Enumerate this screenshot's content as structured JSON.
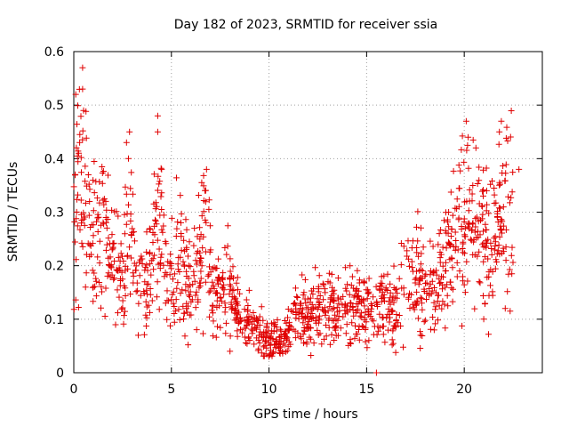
{
  "chart_data": {
    "type": "scatter",
    "title": "Day 182 of 2023, SRMTID for receiver ssia",
    "xlabel": "GPS time / hours",
    "ylabel": "SRMTID / TECUs",
    "xlim": [
      0,
      24
    ],
    "ylim": [
      0,
      0.6
    ],
    "xticks": [
      0,
      5,
      10,
      15,
      20
    ],
    "yticks": [
      0,
      0.1,
      0.2,
      0.3,
      0.4,
      0.5,
      0.6
    ],
    "x_tick_labels": [
      "0",
      "5",
      "10",
      "15",
      "20"
    ],
    "y_tick_labels": [
      "0",
      "0.1",
      "0.2",
      "0.3",
      "0.4",
      "0.5",
      "0.6"
    ],
    "grid": true,
    "marker": "+",
    "color": "#e00000",
    "series": [
      {
        "name": "SRMTID",
        "trend": [
          {
            "x": 0.0,
            "y": 0.3
          },
          {
            "x": 0.2,
            "y": 0.38
          },
          {
            "x": 0.5,
            "y": 0.3
          },
          {
            "x": 1.0,
            "y": 0.25
          },
          {
            "x": 1.5,
            "y": 0.27
          },
          {
            "x": 2.0,
            "y": 0.2
          },
          {
            "x": 2.5,
            "y": 0.17
          },
          {
            "x": 2.8,
            "y": 0.32
          },
          {
            "x": 3.2,
            "y": 0.18
          },
          {
            "x": 3.8,
            "y": 0.15
          },
          {
            "x": 4.3,
            "y": 0.28
          },
          {
            "x": 4.8,
            "y": 0.16
          },
          {
            "x": 5.3,
            "y": 0.22
          },
          {
            "x": 6.0,
            "y": 0.15
          },
          {
            "x": 6.7,
            "y": 0.26
          },
          {
            "x": 7.2,
            "y": 0.14
          },
          {
            "x": 8.0,
            "y": 0.16
          },
          {
            "x": 8.5,
            "y": 0.1
          },
          {
            "x": 9.0,
            "y": 0.09
          },
          {
            "x": 9.5,
            "y": 0.075
          },
          {
            "x": 10.0,
            "y": 0.065
          },
          {
            "x": 10.5,
            "y": 0.06
          },
          {
            "x": 11.0,
            "y": 0.08
          },
          {
            "x": 11.5,
            "y": 0.11
          },
          {
            "x": 12.0,
            "y": 0.1
          },
          {
            "x": 12.5,
            "y": 0.12
          },
          {
            "x": 13.0,
            "y": 0.12
          },
          {
            "x": 13.5,
            "y": 0.11
          },
          {
            "x": 14.0,
            "y": 0.13
          },
          {
            "x": 14.5,
            "y": 0.12
          },
          {
            "x": 15.0,
            "y": 0.13
          },
          {
            "x": 15.5,
            "y": 0.12
          },
          {
            "x": 16.0,
            "y": 0.12
          },
          {
            "x": 16.5,
            "y": 0.11
          },
          {
            "x": 17.0,
            "y": 0.18
          },
          {
            "x": 17.5,
            "y": 0.18
          },
          {
            "x": 18.0,
            "y": 0.15
          },
          {
            "x": 18.5,
            "y": 0.16
          },
          {
            "x": 19.0,
            "y": 0.21
          },
          {
            "x": 19.5,
            "y": 0.25
          },
          {
            "x": 20.0,
            "y": 0.3
          },
          {
            "x": 20.5,
            "y": 0.28
          },
          {
            "x": 21.0,
            "y": 0.25
          },
          {
            "x": 21.5,
            "y": 0.26
          },
          {
            "x": 22.0,
            "y": 0.3
          },
          {
            "x": 22.5,
            "y": 0.3
          }
        ],
        "spikes": [
          {
            "x": 0.45,
            "y": 0.57
          },
          {
            "x": 0.45,
            "y": 0.53
          },
          {
            "x": 0.5,
            "y": 0.49
          },
          {
            "x": 0.1,
            "y": 0.52
          },
          {
            "x": 0.3,
            "y": 0.43
          },
          {
            "x": 0.25,
            "y": 0.41
          },
          {
            "x": 2.7,
            "y": 0.43
          },
          {
            "x": 2.8,
            "y": 0.4
          },
          {
            "x": 4.3,
            "y": 0.48
          },
          {
            "x": 4.3,
            "y": 0.45
          },
          {
            "x": 4.5,
            "y": 0.38
          },
          {
            "x": 6.8,
            "y": 0.38
          },
          {
            "x": 1.0,
            "y": 0.16
          },
          {
            "x": 0.6,
            "y": 0.16
          },
          {
            "x": 20.1,
            "y": 0.47
          },
          {
            "x": 20.2,
            "y": 0.44
          },
          {
            "x": 20.6,
            "y": 0.42
          },
          {
            "x": 21.9,
            "y": 0.47
          },
          {
            "x": 21.8,
            "y": 0.45
          },
          {
            "x": 22.8,
            "y": 0.38
          },
          {
            "x": 19.2,
            "y": 0.3
          },
          {
            "x": 15.5,
            "y": 0.0
          },
          {
            "x": 21.0,
            "y": 0.1
          },
          {
            "x": 22.1,
            "y": 0.12
          },
          {
            "x": 3.3,
            "y": 0.07
          },
          {
            "x": 8.0,
            "y": 0.04
          },
          {
            "x": 10.0,
            "y": 0.03
          }
        ]
      }
    ]
  }
}
